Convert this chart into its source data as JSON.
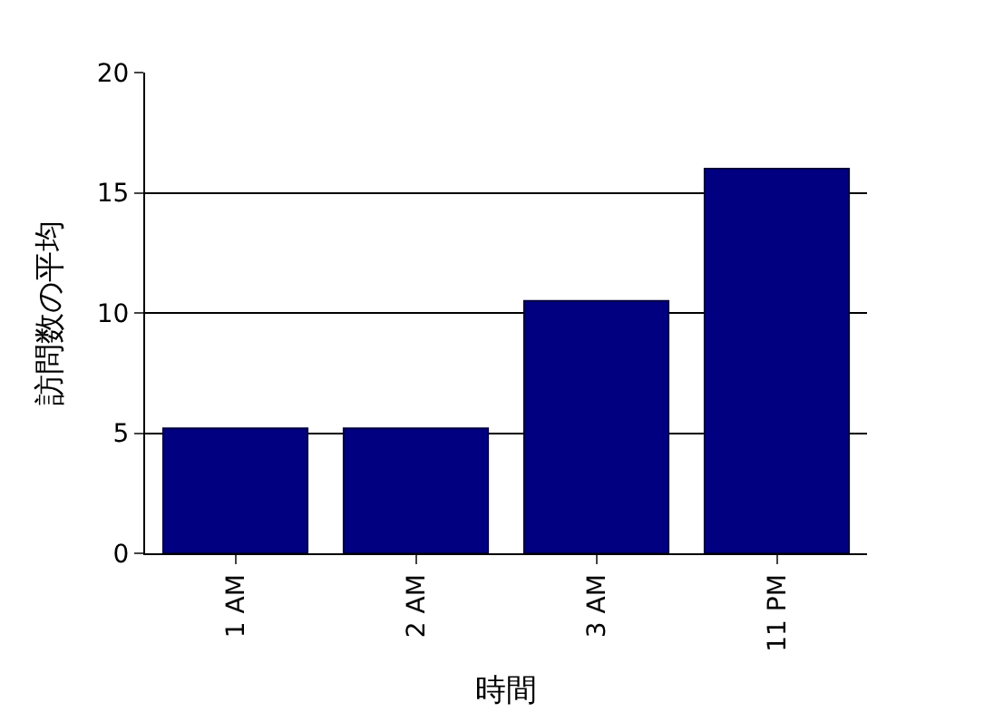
{
  "chart_data": {
    "type": "bar",
    "xlabel": "時間",
    "ylabel": "訪問数の平均",
    "categories": [
      "1 AM",
      "2 AM",
      "3 AM",
      "11 PM"
    ],
    "values": [
      5.2,
      5.2,
      10.5,
      16
    ],
    "color": "#000080",
    "ylim": [
      0,
      20
    ],
    "yticks": [
      0,
      5,
      10,
      15,
      20
    ],
    "grid": "y",
    "legend": false
  }
}
